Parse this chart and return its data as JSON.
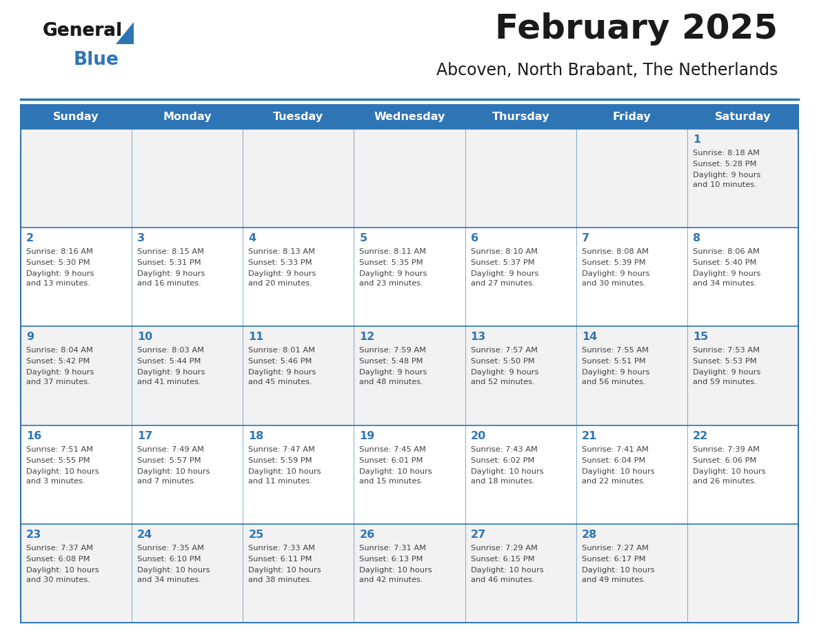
{
  "title": "February 2025",
  "subtitle": "Abcoven, North Brabant, The Netherlands",
  "header_bg": "#2E75B6",
  "header_text": "#FFFFFF",
  "cell_bg_odd": "#F2F2F2",
  "cell_bg_even": "#FFFFFF",
  "cell_text": "#404040",
  "day_number_color": "#2E75B6",
  "border_color": "#2E75B6",
  "days_of_week": [
    "Sunday",
    "Monday",
    "Tuesday",
    "Wednesday",
    "Thursday",
    "Friday",
    "Saturday"
  ],
  "logo_black": "#1a1a1a",
  "logo_blue": "#2E75B6",
  "calendar_data": {
    "1": {
      "sunrise": "8:18 AM",
      "sunset": "5:28 PM",
      "daylight_h": "9 hours",
      "daylight_m": "10 minutes."
    },
    "2": {
      "sunrise": "8:16 AM",
      "sunset": "5:30 PM",
      "daylight_h": "9 hours",
      "daylight_m": "13 minutes."
    },
    "3": {
      "sunrise": "8:15 AM",
      "sunset": "5:31 PM",
      "daylight_h": "9 hours",
      "daylight_m": "16 minutes."
    },
    "4": {
      "sunrise": "8:13 AM",
      "sunset": "5:33 PM",
      "daylight_h": "9 hours",
      "daylight_m": "20 minutes."
    },
    "5": {
      "sunrise": "8:11 AM",
      "sunset": "5:35 PM",
      "daylight_h": "9 hours",
      "daylight_m": "23 minutes."
    },
    "6": {
      "sunrise": "8:10 AM",
      "sunset": "5:37 PM",
      "daylight_h": "9 hours",
      "daylight_m": "27 minutes."
    },
    "7": {
      "sunrise": "8:08 AM",
      "sunset": "5:39 PM",
      "daylight_h": "9 hours",
      "daylight_m": "30 minutes."
    },
    "8": {
      "sunrise": "8:06 AM",
      "sunset": "5:40 PM",
      "daylight_h": "9 hours",
      "daylight_m": "34 minutes."
    },
    "9": {
      "sunrise": "8:04 AM",
      "sunset": "5:42 PM",
      "daylight_h": "9 hours",
      "daylight_m": "37 minutes."
    },
    "10": {
      "sunrise": "8:03 AM",
      "sunset": "5:44 PM",
      "daylight_h": "9 hours",
      "daylight_m": "41 minutes."
    },
    "11": {
      "sunrise": "8:01 AM",
      "sunset": "5:46 PM",
      "daylight_h": "9 hours",
      "daylight_m": "45 minutes."
    },
    "12": {
      "sunrise": "7:59 AM",
      "sunset": "5:48 PM",
      "daylight_h": "9 hours",
      "daylight_m": "48 minutes."
    },
    "13": {
      "sunrise": "7:57 AM",
      "sunset": "5:50 PM",
      "daylight_h": "9 hours",
      "daylight_m": "52 minutes."
    },
    "14": {
      "sunrise": "7:55 AM",
      "sunset": "5:51 PM",
      "daylight_h": "9 hours",
      "daylight_m": "56 minutes."
    },
    "15": {
      "sunrise": "7:53 AM",
      "sunset": "5:53 PM",
      "daylight_h": "9 hours",
      "daylight_m": "59 minutes."
    },
    "16": {
      "sunrise": "7:51 AM",
      "sunset": "5:55 PM",
      "daylight_h": "10 hours",
      "daylight_m": "3 minutes."
    },
    "17": {
      "sunrise": "7:49 AM",
      "sunset": "5:57 PM",
      "daylight_h": "10 hours",
      "daylight_m": "7 minutes."
    },
    "18": {
      "sunrise": "7:47 AM",
      "sunset": "5:59 PM",
      "daylight_h": "10 hours",
      "daylight_m": "11 minutes."
    },
    "19": {
      "sunrise": "7:45 AM",
      "sunset": "6:01 PM",
      "daylight_h": "10 hours",
      "daylight_m": "15 minutes."
    },
    "20": {
      "sunrise": "7:43 AM",
      "sunset": "6:02 PM",
      "daylight_h": "10 hours",
      "daylight_m": "18 minutes."
    },
    "21": {
      "sunrise": "7:41 AM",
      "sunset": "6:04 PM",
      "daylight_h": "10 hours",
      "daylight_m": "22 minutes."
    },
    "22": {
      "sunrise": "7:39 AM",
      "sunset": "6:06 PM",
      "daylight_h": "10 hours",
      "daylight_m": "26 minutes."
    },
    "23": {
      "sunrise": "7:37 AM",
      "sunset": "6:08 PM",
      "daylight_h": "10 hours",
      "daylight_m": "30 minutes."
    },
    "24": {
      "sunrise": "7:35 AM",
      "sunset": "6:10 PM",
      "daylight_h": "10 hours",
      "daylight_m": "34 minutes."
    },
    "25": {
      "sunrise": "7:33 AM",
      "sunset": "6:11 PM",
      "daylight_h": "10 hours",
      "daylight_m": "38 minutes."
    },
    "26": {
      "sunrise": "7:31 AM",
      "sunset": "6:13 PM",
      "daylight_h": "10 hours",
      "daylight_m": "42 minutes."
    },
    "27": {
      "sunrise": "7:29 AM",
      "sunset": "6:15 PM",
      "daylight_h": "10 hours",
      "daylight_m": "46 minutes."
    },
    "28": {
      "sunrise": "7:27 AM",
      "sunset": "6:17 PM",
      "daylight_h": "10 hours",
      "daylight_m": "49 minutes."
    }
  },
  "week_layout": [
    [
      null,
      null,
      null,
      null,
      null,
      null,
      1
    ],
    [
      2,
      3,
      4,
      5,
      6,
      7,
      8
    ],
    [
      9,
      10,
      11,
      12,
      13,
      14,
      15
    ],
    [
      16,
      17,
      18,
      19,
      20,
      21,
      22
    ],
    [
      23,
      24,
      25,
      26,
      27,
      28,
      null
    ]
  ]
}
